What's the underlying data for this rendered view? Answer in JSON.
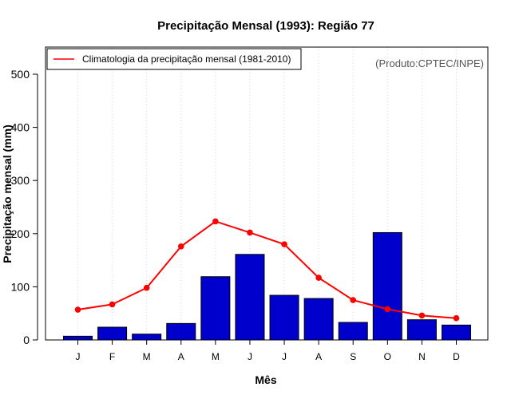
{
  "chart_data": {
    "type": "bar",
    "title": "Precipitação Mensal (1993): Região 77",
    "xlabel": "Mês",
    "ylabel": "Precipitação mensal (mm)",
    "ylim": [
      0,
      550
    ],
    "yticks": [
      0,
      100,
      200,
      300,
      400,
      500
    ],
    "categories": [
      "J",
      "F",
      "M",
      "A",
      "M",
      "J",
      "J",
      "A",
      "S",
      "O",
      "N",
      "D"
    ],
    "series": [
      {
        "name": "Precipitação mensal 1993",
        "type": "bar",
        "color": "#0000cc",
        "values": [
          7,
          24,
          11,
          31,
          119,
          161,
          84,
          78,
          33,
          202,
          38,
          28
        ]
      },
      {
        "name": "Climatologia da precipitação mensal (1981-2010)",
        "type": "line",
        "color": "#ff0000",
        "values": [
          57,
          67,
          98,
          176,
          223,
          202,
          180,
          117,
          75,
          58,
          46,
          41
        ]
      }
    ],
    "legend": {
      "position": "top-left",
      "label": "Climatologia da precipitação mensal (1981-2010)"
    },
    "source": "(Produto:CPTEC/INPE)",
    "grid": "vertical-dotted"
  }
}
